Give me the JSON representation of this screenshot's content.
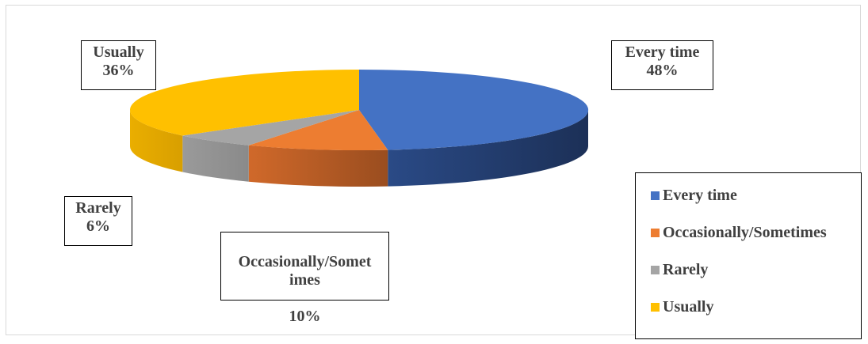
{
  "chart_data": {
    "type": "pie",
    "style": "3d",
    "categories": [
      "Every time",
      "Occasionally/Sometimes",
      "Rarely",
      "Usually"
    ],
    "values": [
      48,
      10,
      6,
      36
    ],
    "colors": [
      "#4472c4",
      "#ed7d31",
      "#a5a5a5",
      "#ffc000"
    ],
    "data_labels": [
      {
        "name": "Every time",
        "value": "48%"
      },
      {
        "name": "Occasionally/Somet\nimes",
        "value": "10%"
      },
      {
        "name": "Rarely",
        "value": "6%"
      },
      {
        "name": "Usually",
        "value": "36%"
      }
    ],
    "legend": {
      "placement": "bottom-right",
      "items": [
        "Every time",
        "Occasionally/Sometimes",
        "Rarely",
        "Usually"
      ]
    }
  }
}
